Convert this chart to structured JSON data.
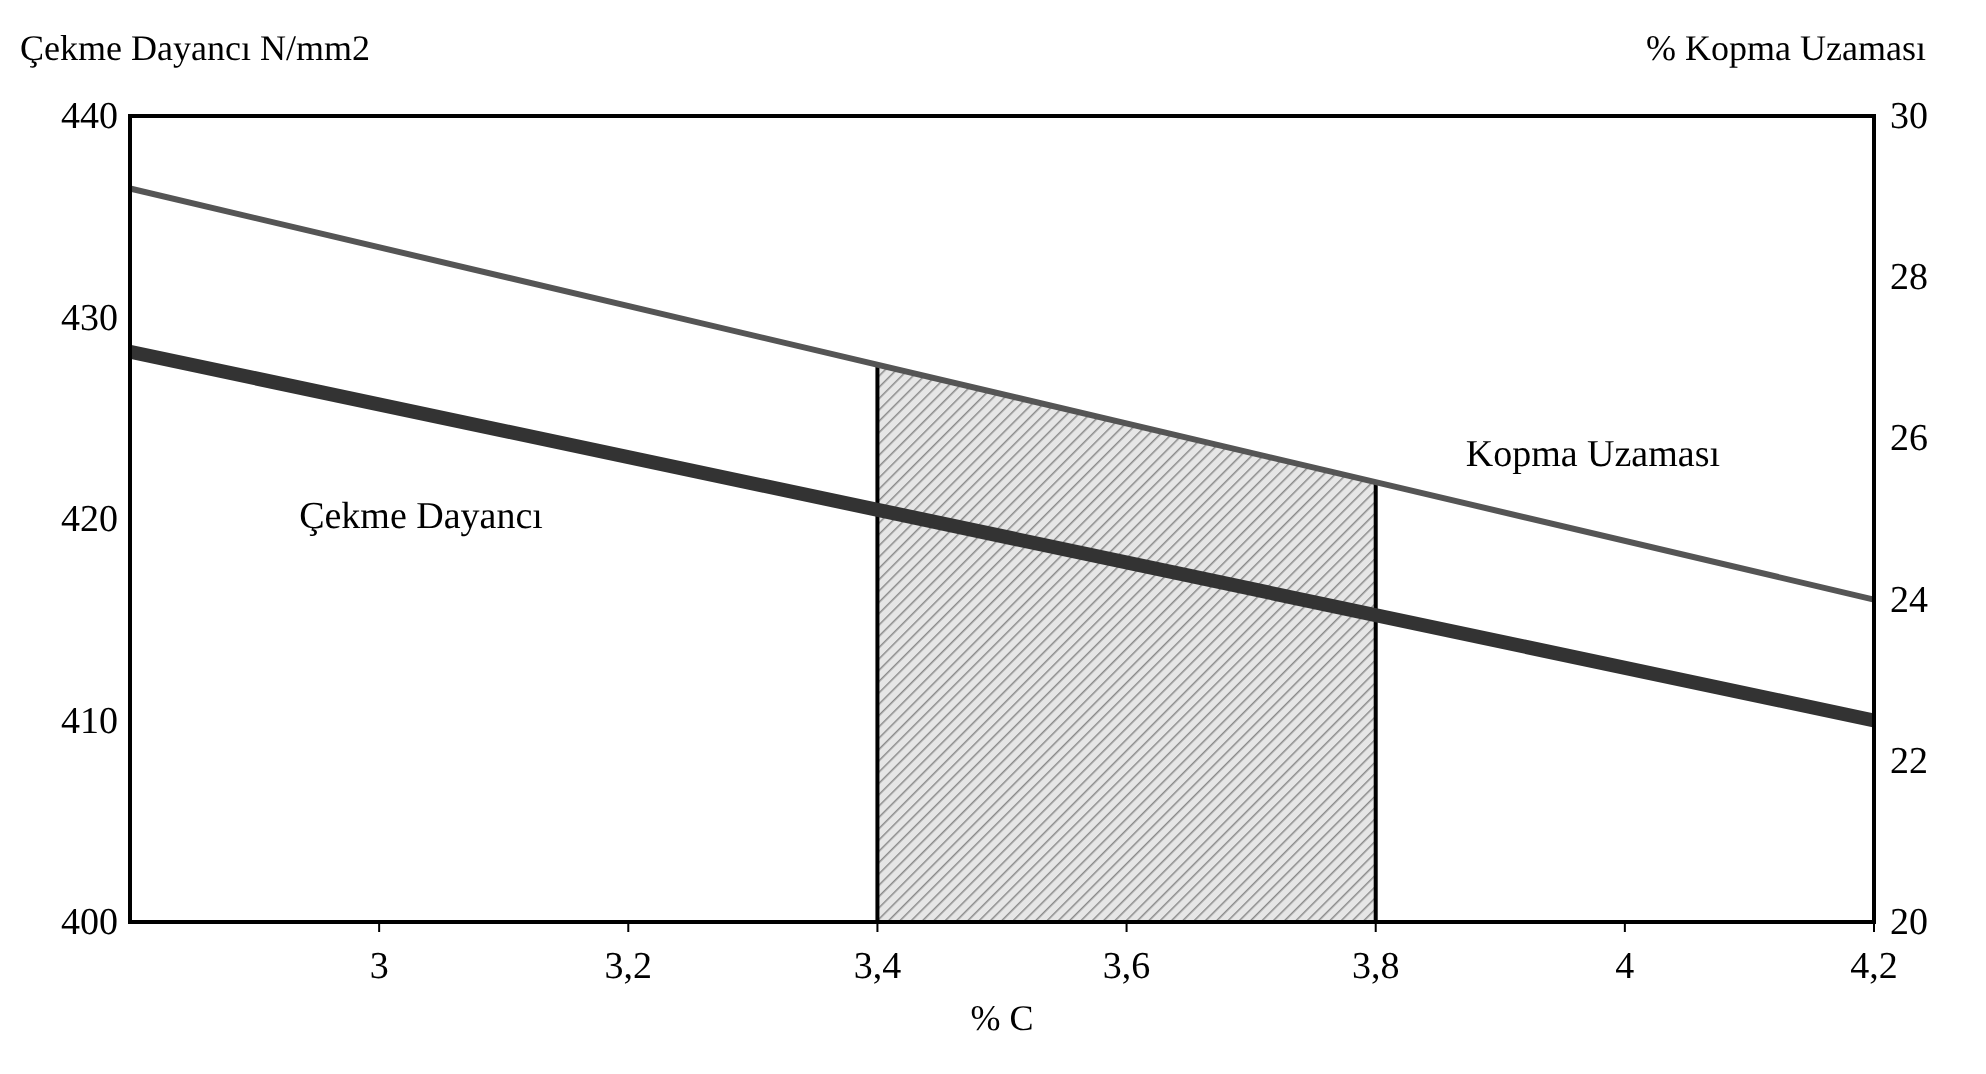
{
  "chart_data": {
    "type": "line",
    "xlabel": "% C",
    "ylabel": "Çekme Dayancı N/mm2",
    "y2label": "% Kopma Uzaması",
    "x": [
      2.8,
      4.2
    ],
    "xlim": [
      2.8,
      4.2
    ],
    "xticks": [
      3,
      {
        "value": 3.2,
        "label": "3,2"
      },
      {
        "value": 3.4,
        "label": "3,4"
      },
      {
        "value": 3.6,
        "label": "3,6"
      },
      {
        "value": 3.8,
        "label": "3,8"
      },
      4,
      {
        "value": 4.2,
        "label": "4,2"
      }
    ],
    "ylim": [
      400,
      440
    ],
    "yticks": [
      400,
      410,
      420,
      430,
      440
    ],
    "y2lim": [
      20,
      30
    ],
    "y2ticks": [
      20,
      22,
      24,
      26,
      28,
      30
    ],
    "series": [
      {
        "name": "Çekme Dayancı",
        "color": "#333333",
        "values": [
          428.3,
          410
        ]
      },
      {
        "name": "Kopma Uzaması",
        "color": "#555555",
        "values": [
          29.1,
          24
        ],
        "axis": "y2"
      }
    ],
    "bands": [
      {
        "axis": "x",
        "from": 3.4,
        "to": 3.8,
        "color": "#000000"
      }
    ],
    "grid": false,
    "marker": "none",
    "line_style": "solid"
  }
}
